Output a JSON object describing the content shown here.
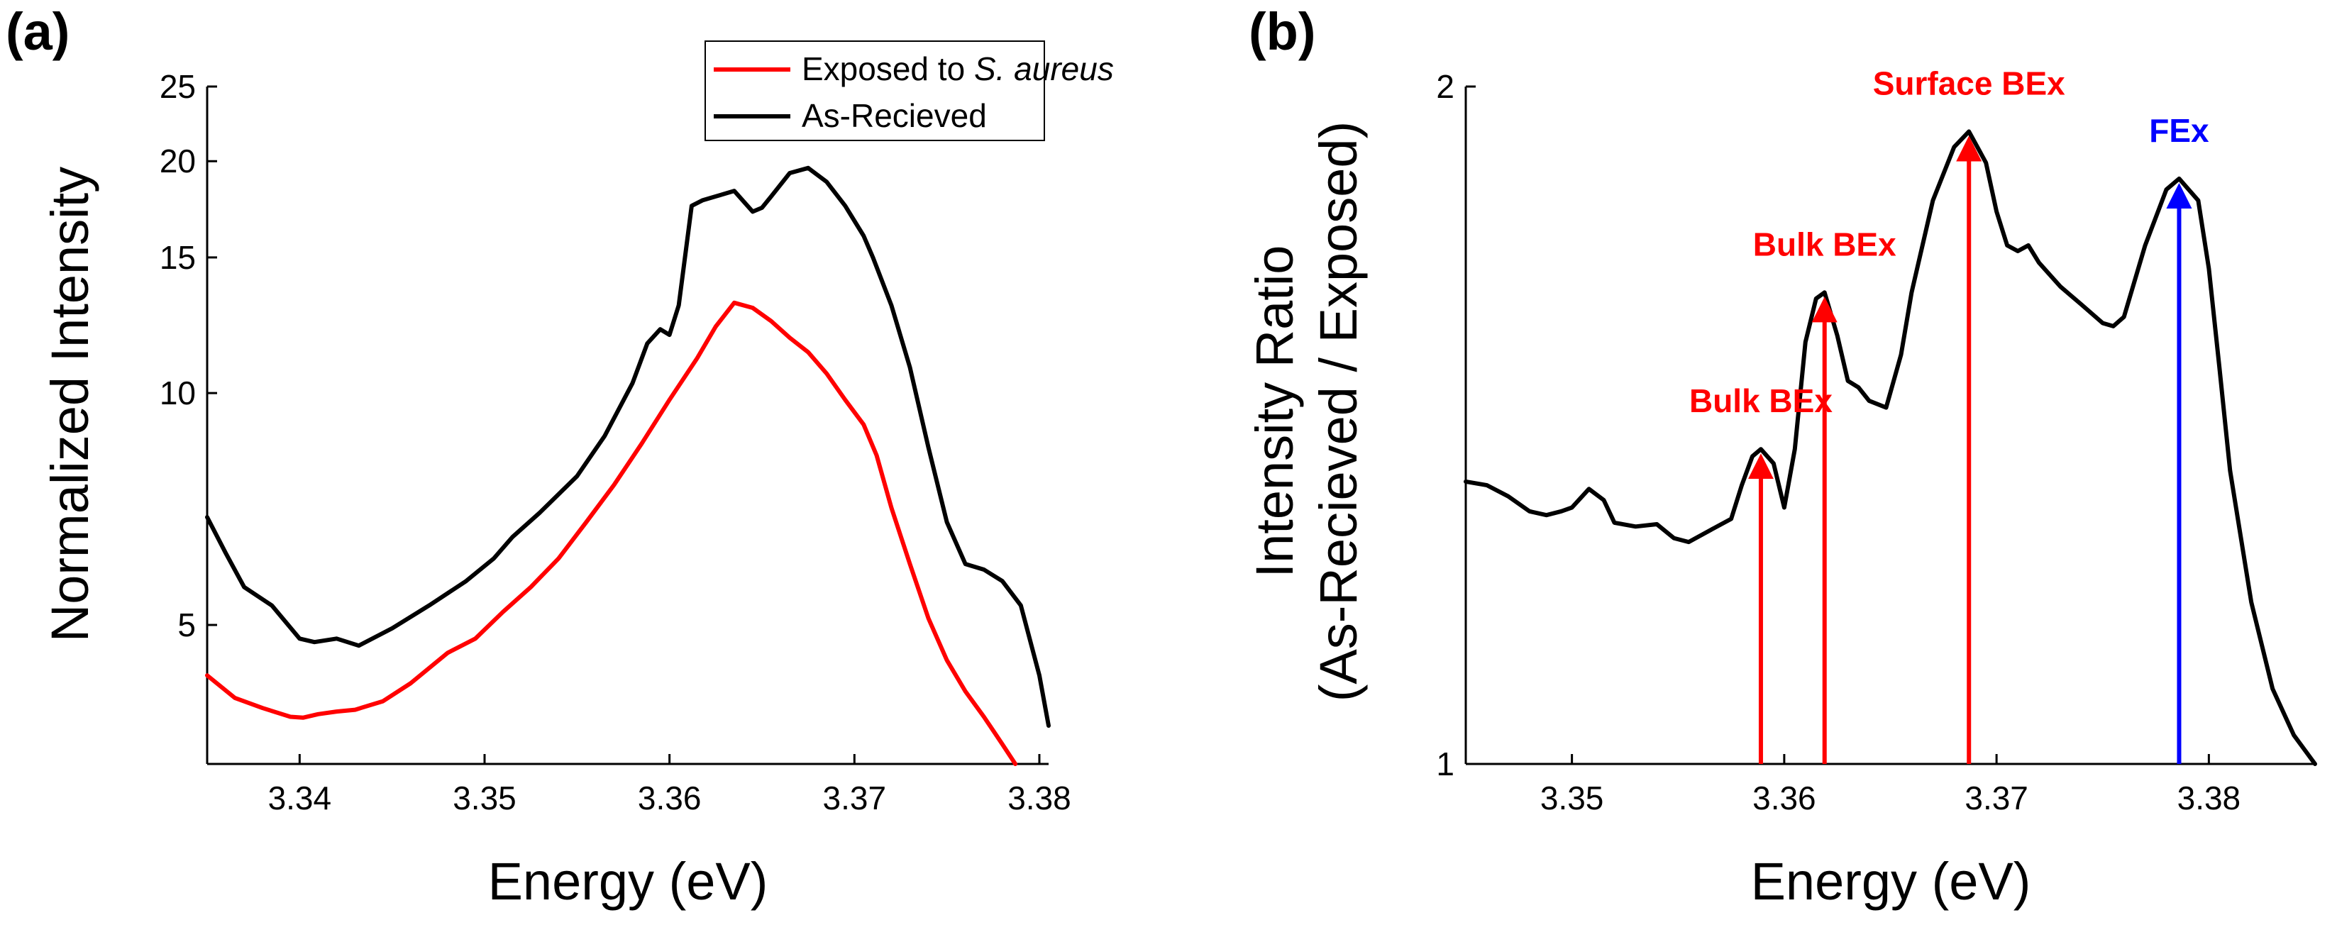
{
  "chart_data": [
    {
      "panel_label": "(a)",
      "type": "line",
      "xlabel": "Energy (eV)",
      "ylabel": "Normalized Intensity",
      "xlim": [
        3.335,
        3.3805
      ],
      "ylim": [
        3.3,
        25
      ],
      "yscale": "log",
      "xticks": [
        3.34,
        3.35,
        3.36,
        3.37,
        3.38
      ],
      "xtick_labels": [
        "3.34",
        "3.35",
        "3.36",
        "3.37",
        "3.38"
      ],
      "yticks": [
        5,
        10,
        15,
        20,
        25
      ],
      "ytick_labels": [
        "5",
        "10",
        "15",
        "20",
        "25"
      ],
      "legend": {
        "placement": "top-right",
        "entries": [
          {
            "prefix": "Exposed to ",
            "italic": "S. aureus",
            "color": "#ff0000"
          },
          {
            "prefix": "As-Recieved",
            "italic": "",
            "color": "#000000"
          }
        ]
      },
      "series": [
        {
          "name": "Exposed to S. aureus",
          "color": "#ff0000",
          "x": [
            3.335,
            3.3365,
            3.338,
            3.3395,
            3.3402,
            3.341,
            3.342,
            3.343,
            3.3445,
            3.346,
            3.348,
            3.3495,
            3.351,
            3.3525,
            3.354,
            3.3555,
            3.357,
            3.3585,
            3.36,
            3.3615,
            3.3625,
            3.3635,
            3.3645,
            3.3655,
            3.3665,
            3.3675,
            3.3685,
            3.3695,
            3.3705,
            3.3712,
            3.372,
            3.373,
            3.374,
            3.375,
            3.376,
            3.377,
            3.378,
            3.3787
          ],
          "y": [
            4.3,
            4.02,
            3.9,
            3.8,
            3.79,
            3.83,
            3.86,
            3.88,
            3.98,
            4.2,
            4.6,
            4.8,
            5.2,
            5.6,
            6.1,
            6.8,
            7.6,
            8.6,
            9.8,
            11.1,
            12.2,
            13.1,
            12.9,
            12.4,
            11.8,
            11.3,
            10.6,
            9.8,
            9.1,
            8.3,
            7.1,
            6.0,
            5.1,
            4.5,
            4.1,
            3.8,
            3.5,
            3.3
          ]
        },
        {
          "name": "As-Recieved",
          "color": "#000000",
          "x": [
            3.335,
            3.336,
            3.337,
            3.3385,
            3.34,
            3.3408,
            3.342,
            3.3432,
            3.345,
            3.347,
            3.349,
            3.3505,
            3.3515,
            3.353,
            3.355,
            3.3565,
            3.358,
            3.3588,
            3.3595,
            3.36,
            3.3605,
            3.3612,
            3.3618,
            3.3625,
            3.3635,
            3.3645,
            3.365,
            3.3655,
            3.3665,
            3.3675,
            3.3685,
            3.3695,
            3.3705,
            3.371,
            3.372,
            3.373,
            3.374,
            3.375,
            3.376,
            3.377,
            3.378,
            3.379,
            3.38,
            3.3805
          ],
          "y": [
            6.9,
            6.2,
            5.6,
            5.3,
            4.8,
            4.75,
            4.8,
            4.7,
            4.95,
            5.3,
            5.7,
            6.1,
            6.5,
            7.0,
            7.8,
            8.8,
            10.3,
            11.6,
            12.1,
            11.9,
            13.0,
            17.5,
            17.8,
            18.0,
            18.3,
            17.2,
            17.4,
            18.0,
            19.3,
            19.6,
            18.8,
            17.5,
            16.0,
            15.0,
            13.0,
            10.8,
            8.5,
            6.8,
            6.0,
            5.9,
            5.7,
            5.3,
            4.3,
            3.7
          ]
        }
      ]
    },
    {
      "panel_label": "(b)",
      "type": "line",
      "xlabel": "Energy (eV)",
      "ylabel": "Intensity Ratio",
      "ylabel2": "(As-Recieved / Exposed)",
      "xlim": [
        3.345,
        3.385
      ],
      "ylim": [
        1,
        2
      ],
      "yscale": "log",
      "xticks": [
        3.35,
        3.36,
        3.37,
        3.38
      ],
      "xtick_labels": [
        "3.35",
        "3.36",
        "3.37",
        "3.38"
      ],
      "yticks": [
        1,
        2
      ],
      "ytick_labels": [
        "1",
        "2"
      ],
      "series": [
        {
          "name": "Intensity Ratio",
          "color": "#000000",
          "x": [
            3.345,
            3.346,
            3.347,
            3.348,
            3.3488,
            3.3495,
            3.35,
            3.3508,
            3.3515,
            3.352,
            3.353,
            3.354,
            3.3548,
            3.3555,
            3.3565,
            3.3575,
            3.358,
            3.3585,
            3.3589,
            3.3595,
            3.36,
            3.3605,
            3.361,
            3.3615,
            3.3619,
            3.3625,
            3.363,
            3.3635,
            3.364,
            3.3648,
            3.3655,
            3.366,
            3.367,
            3.368,
            3.3687,
            3.3695,
            3.37,
            3.3705,
            3.371,
            3.3715,
            3.372,
            3.373,
            3.374,
            3.375,
            3.3755,
            3.376,
            3.377,
            3.378,
            3.3786,
            3.3795,
            3.38,
            3.3805,
            3.381,
            3.382,
            3.383,
            3.384,
            3.385
          ],
          "y": [
            1.335,
            1.33,
            1.315,
            1.295,
            1.29,
            1.295,
            1.3,
            1.325,
            1.31,
            1.28,
            1.275,
            1.278,
            1.26,
            1.255,
            1.27,
            1.285,
            1.33,
            1.37,
            1.38,
            1.36,
            1.3,
            1.38,
            1.54,
            1.61,
            1.62,
            1.55,
            1.48,
            1.47,
            1.45,
            1.44,
            1.52,
            1.62,
            1.78,
            1.88,
            1.91,
            1.85,
            1.76,
            1.7,
            1.69,
            1.7,
            1.67,
            1.63,
            1.6,
            1.57,
            1.565,
            1.58,
            1.7,
            1.8,
            1.82,
            1.78,
            1.66,
            1.5,
            1.35,
            1.18,
            1.08,
            1.03,
            1.0
          ]
        }
      ],
      "annotations": [
        {
          "text": "Bulk BEx",
          "x": 3.3589,
          "y": 1.38,
          "color": "#ff0000"
        },
        {
          "text": "Bulk BEx",
          "x": 3.3619,
          "y": 1.62,
          "color": "#ff0000"
        },
        {
          "text": "Surface BEx",
          "x": 3.3687,
          "y": 1.91,
          "color": "#ff0000"
        },
        {
          "text": "FEx",
          "x": 3.3786,
          "y": 1.82,
          "color": "#0000ff"
        }
      ]
    }
  ]
}
